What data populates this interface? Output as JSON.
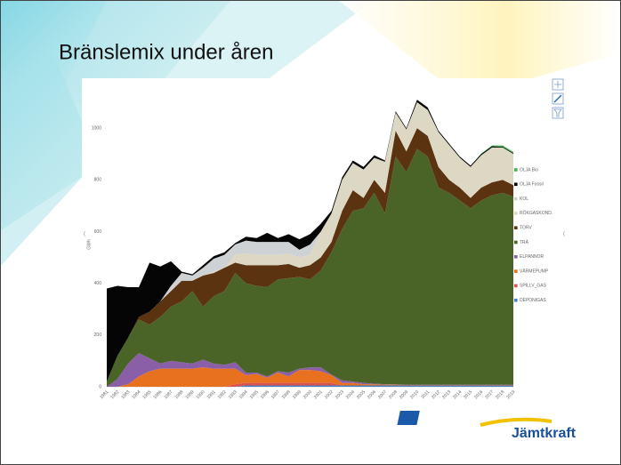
{
  "slide_title": "Bränslemix under åren",
  "logo": "Jämtkraft",
  "chart_data": {
    "type": "stacked_area",
    "ylabel": "GWh",
    "categories": [
      "1981",
      "1982",
      "1983",
      "1984",
      "1985",
      "1986",
      "1987",
      "1988",
      "1989",
      "1990",
      "1991",
      "1992",
      "1993",
      "1994",
      "1995",
      "1996",
      "1997",
      "1998",
      "1999",
      "2000",
      "2001",
      "2002",
      "2003",
      "2004",
      "2005",
      "2006",
      "2007",
      "2008",
      "2009",
      "2010",
      "2011",
      "2012",
      "2013",
      "2014",
      "2015",
      "2016",
      "2017",
      "2018",
      "2019"
    ],
    "ylim": [
      0,
      1100
    ],
    "yticks": [
      0,
      200,
      400,
      600,
      800,
      1000
    ],
    "series": [
      {
        "name": "DEPONIGAS",
        "color": "#4a7fc1",
        "values": [
          0,
          0,
          0,
          0,
          0,
          0,
          0,
          0,
          0,
          0,
          0,
          0,
          0,
          5,
          5,
          5,
          5,
          5,
          5,
          5,
          5,
          5,
          5,
          5,
          5,
          5,
          5,
          5,
          5,
          5,
          5,
          5,
          5,
          5,
          5,
          5,
          5,
          5,
          5
        ]
      },
      {
        "name": "SPILLV_GAS",
        "color": "#d9534f",
        "values": [
          0,
          0,
          0,
          0,
          0,
          0,
          0,
          0,
          0,
          0,
          0,
          0,
          10,
          10,
          10,
          10,
          10,
          10,
          10,
          10,
          10,
          10,
          0,
          0,
          0,
          0,
          0,
          0,
          0,
          0,
          0,
          0,
          0,
          0,
          0,
          0,
          0,
          0,
          0
        ]
      },
      {
        "name": "VÄRMEPUMP",
        "color": "#e8711f",
        "values": [
          0,
          0,
          10,
          40,
          60,
          70,
          70,
          70,
          70,
          75,
          70,
          70,
          60,
          30,
          35,
          20,
          40,
          25,
          50,
          50,
          45,
          30,
          10,
          10,
          5,
          5,
          3,
          3,
          2,
          2,
          2,
          2,
          2,
          2,
          2,
          2,
          2,
          2,
          2
        ]
      },
      {
        "name": "ELPANNOR",
        "color": "#8a5fa8",
        "values": [
          0,
          30,
          80,
          90,
          50,
          20,
          30,
          25,
          20,
          30,
          20,
          15,
          25,
          10,
          5,
          5,
          5,
          15,
          5,
          10,
          15,
          2,
          10,
          5,
          5,
          2,
          2,
          1,
          1,
          1,
          1,
          1,
          1,
          1,
          1,
          1,
          1,
          1,
          1
        ]
      },
      {
        "name": "TRÄ",
        "color": "#4a6428",
        "values": [
          20,
          90,
          100,
          130,
          130,
          180,
          210,
          235,
          280,
          205,
          260,
          285,
          345,
          345,
          335,
          345,
          355,
          365,
          355,
          340,
          375,
          473,
          585,
          660,
          675,
          738,
          660,
          881,
          822,
          912,
          882,
          762,
          742,
          712,
          682,
          712,
          732,
          742,
          727
        ]
      },
      {
        "name": "TORV",
        "color": "#5c3310",
        "values": [
          0,
          0,
          0,
          10,
          50,
          60,
          60,
          80,
          40,
          120,
          90,
          90,
          40,
          70,
          80,
          85,
          55,
          55,
          35,
          55,
          50,
          40,
          70,
          80,
          40,
          50,
          80,
          100,
          80,
          80,
          80,
          80,
          50,
          50,
          40,
          50,
          50,
          50,
          45
        ]
      },
      {
        "name": "RÖKGASKOND.",
        "color": "#dcd8c4",
        "values": [
          0,
          0,
          0,
          0,
          0,
          0,
          0,
          0,
          0,
          0,
          5,
          0,
          30,
          45,
          40,
          40,
          40,
          40,
          40,
          40,
          100,
          110,
          120,
          105,
          110,
          85,
          120,
          70,
          85,
          100,
          100,
          135,
          135,
          115,
          120,
          125,
          135,
          125,
          120
        ]
      },
      {
        "name": "KOL",
        "color": "#cfd2d4",
        "values": [
          0,
          0,
          0,
          0,
          0,
          0,
          20,
          30,
          20,
          30,
          50,
          50,
          40,
          50,
          50,
          50,
          50,
          45,
          30,
          40,
          0,
          0,
          0,
          0,
          0,
          0,
          0,
          0,
          0,
          0,
          0,
          0,
          0,
          0,
          0,
          0,
          0,
          0,
          0
        ]
      },
      {
        "name": "OLJA Fossil",
        "color": "#050505",
        "values": [
          360,
          270,
          195,
          115,
          190,
          135,
          95,
          5,
          5,
          10,
          10,
          10,
          5,
          15,
          15,
          35,
          15,
          30,
          40,
          40,
          30,
          10,
          10,
          10,
          10,
          10,
          5,
          5,
          5,
          10,
          10,
          5,
          5,
          5,
          5,
          5,
          5,
          3,
          3
        ]
      },
      {
        "name": "OLJA Bio",
        "color": "#3fb34f",
        "values": [
          0,
          0,
          0,
          0,
          0,
          0,
          0,
          0,
          0,
          0,
          0,
          0,
          0,
          0,
          0,
          0,
          0,
          0,
          0,
          0,
          0,
          0,
          0,
          0,
          0,
          0,
          0,
          0,
          0,
          0,
          0,
          0,
          0,
          0,
          0,
          2,
          3,
          5,
          5
        ]
      }
    ]
  }
}
